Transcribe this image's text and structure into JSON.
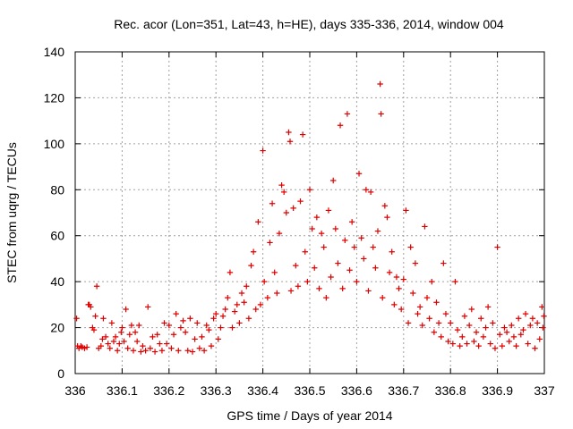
{
  "chart_data": {
    "type": "scatter",
    "title": "Rec. acor (Lon=351, Lat=43, h=HE), days 335-336, 2014, window 004",
    "xlabel": "GPS time / Days of year 2014",
    "ylabel": "STEC from uqrg / TECUs",
    "xlim": [
      336,
      337
    ],
    "ylim": [
      0,
      140
    ],
    "xticks": [
      336,
      336.1,
      336.2,
      336.3,
      336.4,
      336.5,
      336.6,
      336.7,
      336.8,
      336.9,
      337
    ],
    "xtick_labels": [
      "336",
      "336.1",
      "336.2",
      "336.3",
      "336.4",
      "336.5",
      "336.6",
      "336.7",
      "336.8",
      "336.9",
      "337"
    ],
    "yticks": [
      0,
      20,
      40,
      60,
      80,
      100,
      120,
      140
    ],
    "ytick_labels": [
      "0",
      "20",
      "40",
      "60",
      "80",
      "100",
      "120",
      "140"
    ],
    "grid": true,
    "marker": "+",
    "color": "#dd0000",
    "series": [
      {
        "name": "STEC",
        "points": [
          [
            336.003,
            24
          ],
          [
            336.005,
            12
          ],
          [
            336.008,
            11
          ],
          [
            336.012,
            12
          ],
          [
            336.015,
            11.5
          ],
          [
            336.02,
            11
          ],
          [
            336.025,
            11.5
          ],
          [
            336.028,
            30
          ],
          [
            336.03,
            30
          ],
          [
            336.033,
            29
          ],
          [
            336.037,
            20
          ],
          [
            336.04,
            19
          ],
          [
            336.043,
            25
          ],
          [
            336.046,
            38
          ],
          [
            336.05,
            11
          ],
          [
            336.055,
            12
          ],
          [
            336.058,
            15
          ],
          [
            336.06,
            24
          ],
          [
            336.065,
            16
          ],
          [
            336.07,
            13
          ],
          [
            336.074,
            11
          ],
          [
            336.078,
            22
          ],
          [
            336.082,
            14
          ],
          [
            336.086,
            16
          ],
          [
            336.09,
            10
          ],
          [
            336.094,
            13
          ],
          [
            336.098,
            18
          ],
          [
            336.1,
            20
          ],
          [
            336.104,
            14
          ],
          [
            336.108,
            28
          ],
          [
            336.112,
            11
          ],
          [
            336.116,
            17
          ],
          [
            336.12,
            21
          ],
          [
            336.124,
            10
          ],
          [
            336.128,
            18
          ],
          [
            336.132,
            14
          ],
          [
            336.136,
            21
          ],
          [
            336.14,
            9.5
          ],
          [
            336.144,
            12
          ],
          [
            336.15,
            10
          ],
          [
            336.155,
            29
          ],
          [
            336.16,
            11
          ],
          [
            336.165,
            16
          ],
          [
            336.17,
            9.5
          ],
          [
            336.175,
            17
          ],
          [
            336.18,
            13
          ],
          [
            336.185,
            10
          ],
          [
            336.19,
            22
          ],
          [
            336.195,
            13
          ],
          [
            336.2,
            21
          ],
          [
            336.205,
            11
          ],
          [
            336.21,
            17
          ],
          [
            336.215,
            26
          ],
          [
            336.22,
            10
          ],
          [
            336.225,
            20
          ],
          [
            336.23,
            23
          ],
          [
            336.235,
            18
          ],
          [
            336.24,
            10
          ],
          [
            336.245,
            24
          ],
          [
            336.25,
            9.5
          ],
          [
            336.255,
            15
          ],
          [
            336.26,
            22
          ],
          [
            336.265,
            11
          ],
          [
            336.27,
            16
          ],
          [
            336.275,
            10
          ],
          [
            336.28,
            21
          ],
          [
            336.285,
            19
          ],
          [
            336.29,
            12
          ],
          [
            336.295,
            24
          ],
          [
            336.3,
            26
          ],
          [
            336.305,
            15
          ],
          [
            336.31,
            20
          ],
          [
            336.315,
            25
          ],
          [
            336.32,
            28
          ],
          [
            336.325,
            33
          ],
          [
            336.33,
            44
          ],
          [
            336.335,
            20
          ],
          [
            336.34,
            27
          ],
          [
            336.345,
            30
          ],
          [
            336.35,
            22
          ],
          [
            336.355,
            35
          ],
          [
            336.36,
            31
          ],
          [
            336.365,
            38
          ],
          [
            336.37,
            24
          ],
          [
            336.375,
            47
          ],
          [
            336.38,
            53
          ],
          [
            336.385,
            28
          ],
          [
            336.39,
            66
          ],
          [
            336.395,
            30
          ],
          [
            336.4,
            97
          ],
          [
            336.403,
            40
          ],
          [
            336.41,
            33
          ],
          [
            336.415,
            57
          ],
          [
            336.42,
            74
          ],
          [
            336.425,
            44
          ],
          [
            336.43,
            35
          ],
          [
            336.435,
            61
          ],
          [
            336.44,
            82
          ],
          [
            336.445,
            79
          ],
          [
            336.45,
            70
          ],
          [
            336.455,
            105
          ],
          [
            336.458,
            101
          ],
          [
            336.46,
            36
          ],
          [
            336.465,
            72
          ],
          [
            336.47,
            47
          ],
          [
            336.475,
            38
          ],
          [
            336.48,
            75
          ],
          [
            336.485,
            104
          ],
          [
            336.49,
            53
          ],
          [
            336.495,
            40
          ],
          [
            336.5,
            80
          ],
          [
            336.505,
            63
          ],
          [
            336.51,
            46
          ],
          [
            336.515,
            68
          ],
          [
            336.52,
            37
          ],
          [
            336.525,
            61
          ],
          [
            336.53,
            55
          ],
          [
            336.535,
            33
          ],
          [
            336.54,
            71
          ],
          [
            336.545,
            42
          ],
          [
            336.55,
            84
          ],
          [
            336.555,
            63
          ],
          [
            336.56,
            48
          ],
          [
            336.565,
            108
          ],
          [
            336.57,
            37
          ],
          [
            336.575,
            58
          ],
          [
            336.58,
            113
          ],
          [
            336.585,
            45
          ],
          [
            336.59,
            66
          ],
          [
            336.595,
            55
          ],
          [
            336.6,
            40
          ],
          [
            336.605,
            87
          ],
          [
            336.61,
            59
          ],
          [
            336.615,
            50
          ],
          [
            336.62,
            80
          ],
          [
            336.625,
            36
          ],
          [
            336.63,
            79
          ],
          [
            336.635,
            55
          ],
          [
            336.64,
            46
          ],
          [
            336.645,
            62
          ],
          [
            336.65,
            126
          ],
          [
            336.652,
            113
          ],
          [
            336.655,
            33
          ],
          [
            336.66,
            73
          ],
          [
            336.665,
            68
          ],
          [
            336.67,
            44
          ],
          [
            336.675,
            53
          ],
          [
            336.68,
            30
          ],
          [
            336.685,
            42
          ],
          [
            336.69,
            37
          ],
          [
            336.695,
            28
          ],
          [
            336.7,
            41
          ],
          [
            336.705,
            71
          ],
          [
            336.71,
            22
          ],
          [
            336.715,
            55
          ],
          [
            336.72,
            35
          ],
          [
            336.725,
            48
          ],
          [
            336.73,
            26
          ],
          [
            336.735,
            29
          ],
          [
            336.74,
            21
          ],
          [
            336.745,
            64
          ],
          [
            336.75,
            33
          ],
          [
            336.755,
            24
          ],
          [
            336.76,
            40
          ],
          [
            336.765,
            18
          ],
          [
            336.77,
            31
          ],
          [
            336.775,
            22
          ],
          [
            336.78,
            16
          ],
          [
            336.785,
            48
          ],
          [
            336.79,
            26
          ],
          [
            336.795,
            14
          ],
          [
            336.8,
            22
          ],
          [
            336.805,
            13
          ],
          [
            336.81,
            40
          ],
          [
            336.815,
            19
          ],
          [
            336.82,
            12
          ],
          [
            336.825,
            16
          ],
          [
            336.83,
            25
          ],
          [
            336.835,
            13
          ],
          [
            336.84,
            21
          ],
          [
            336.845,
            28
          ],
          [
            336.85,
            14
          ],
          [
            336.855,
            18
          ],
          [
            336.86,
            12
          ],
          [
            336.865,
            24
          ],
          [
            336.87,
            16
          ],
          [
            336.875,
            20
          ],
          [
            336.88,
            29
          ],
          [
            336.885,
            13
          ],
          [
            336.89,
            22
          ],
          [
            336.895,
            11
          ],
          [
            336.9,
            55
          ],
          [
            336.905,
            17
          ],
          [
            336.91,
            12
          ],
          [
            336.915,
            20
          ],
          [
            336.92,
            18
          ],
          [
            336.925,
            14
          ],
          [
            336.93,
            21
          ],
          [
            336.935,
            16
          ],
          [
            336.94,
            12
          ],
          [
            336.945,
            24
          ],
          [
            336.95,
            17
          ],
          [
            336.955,
            19
          ],
          [
            336.96,
            26
          ],
          [
            336.965,
            13
          ],
          [
            336.97,
            21
          ],
          [
            336.975,
            24
          ],
          [
            336.98,
            11
          ],
          [
            336.985,
            22
          ],
          [
            336.99,
            15
          ],
          [
            336.995,
            29
          ],
          [
            336.997,
            20
          ],
          [
            336.999,
            25
          ]
        ]
      }
    ]
  }
}
